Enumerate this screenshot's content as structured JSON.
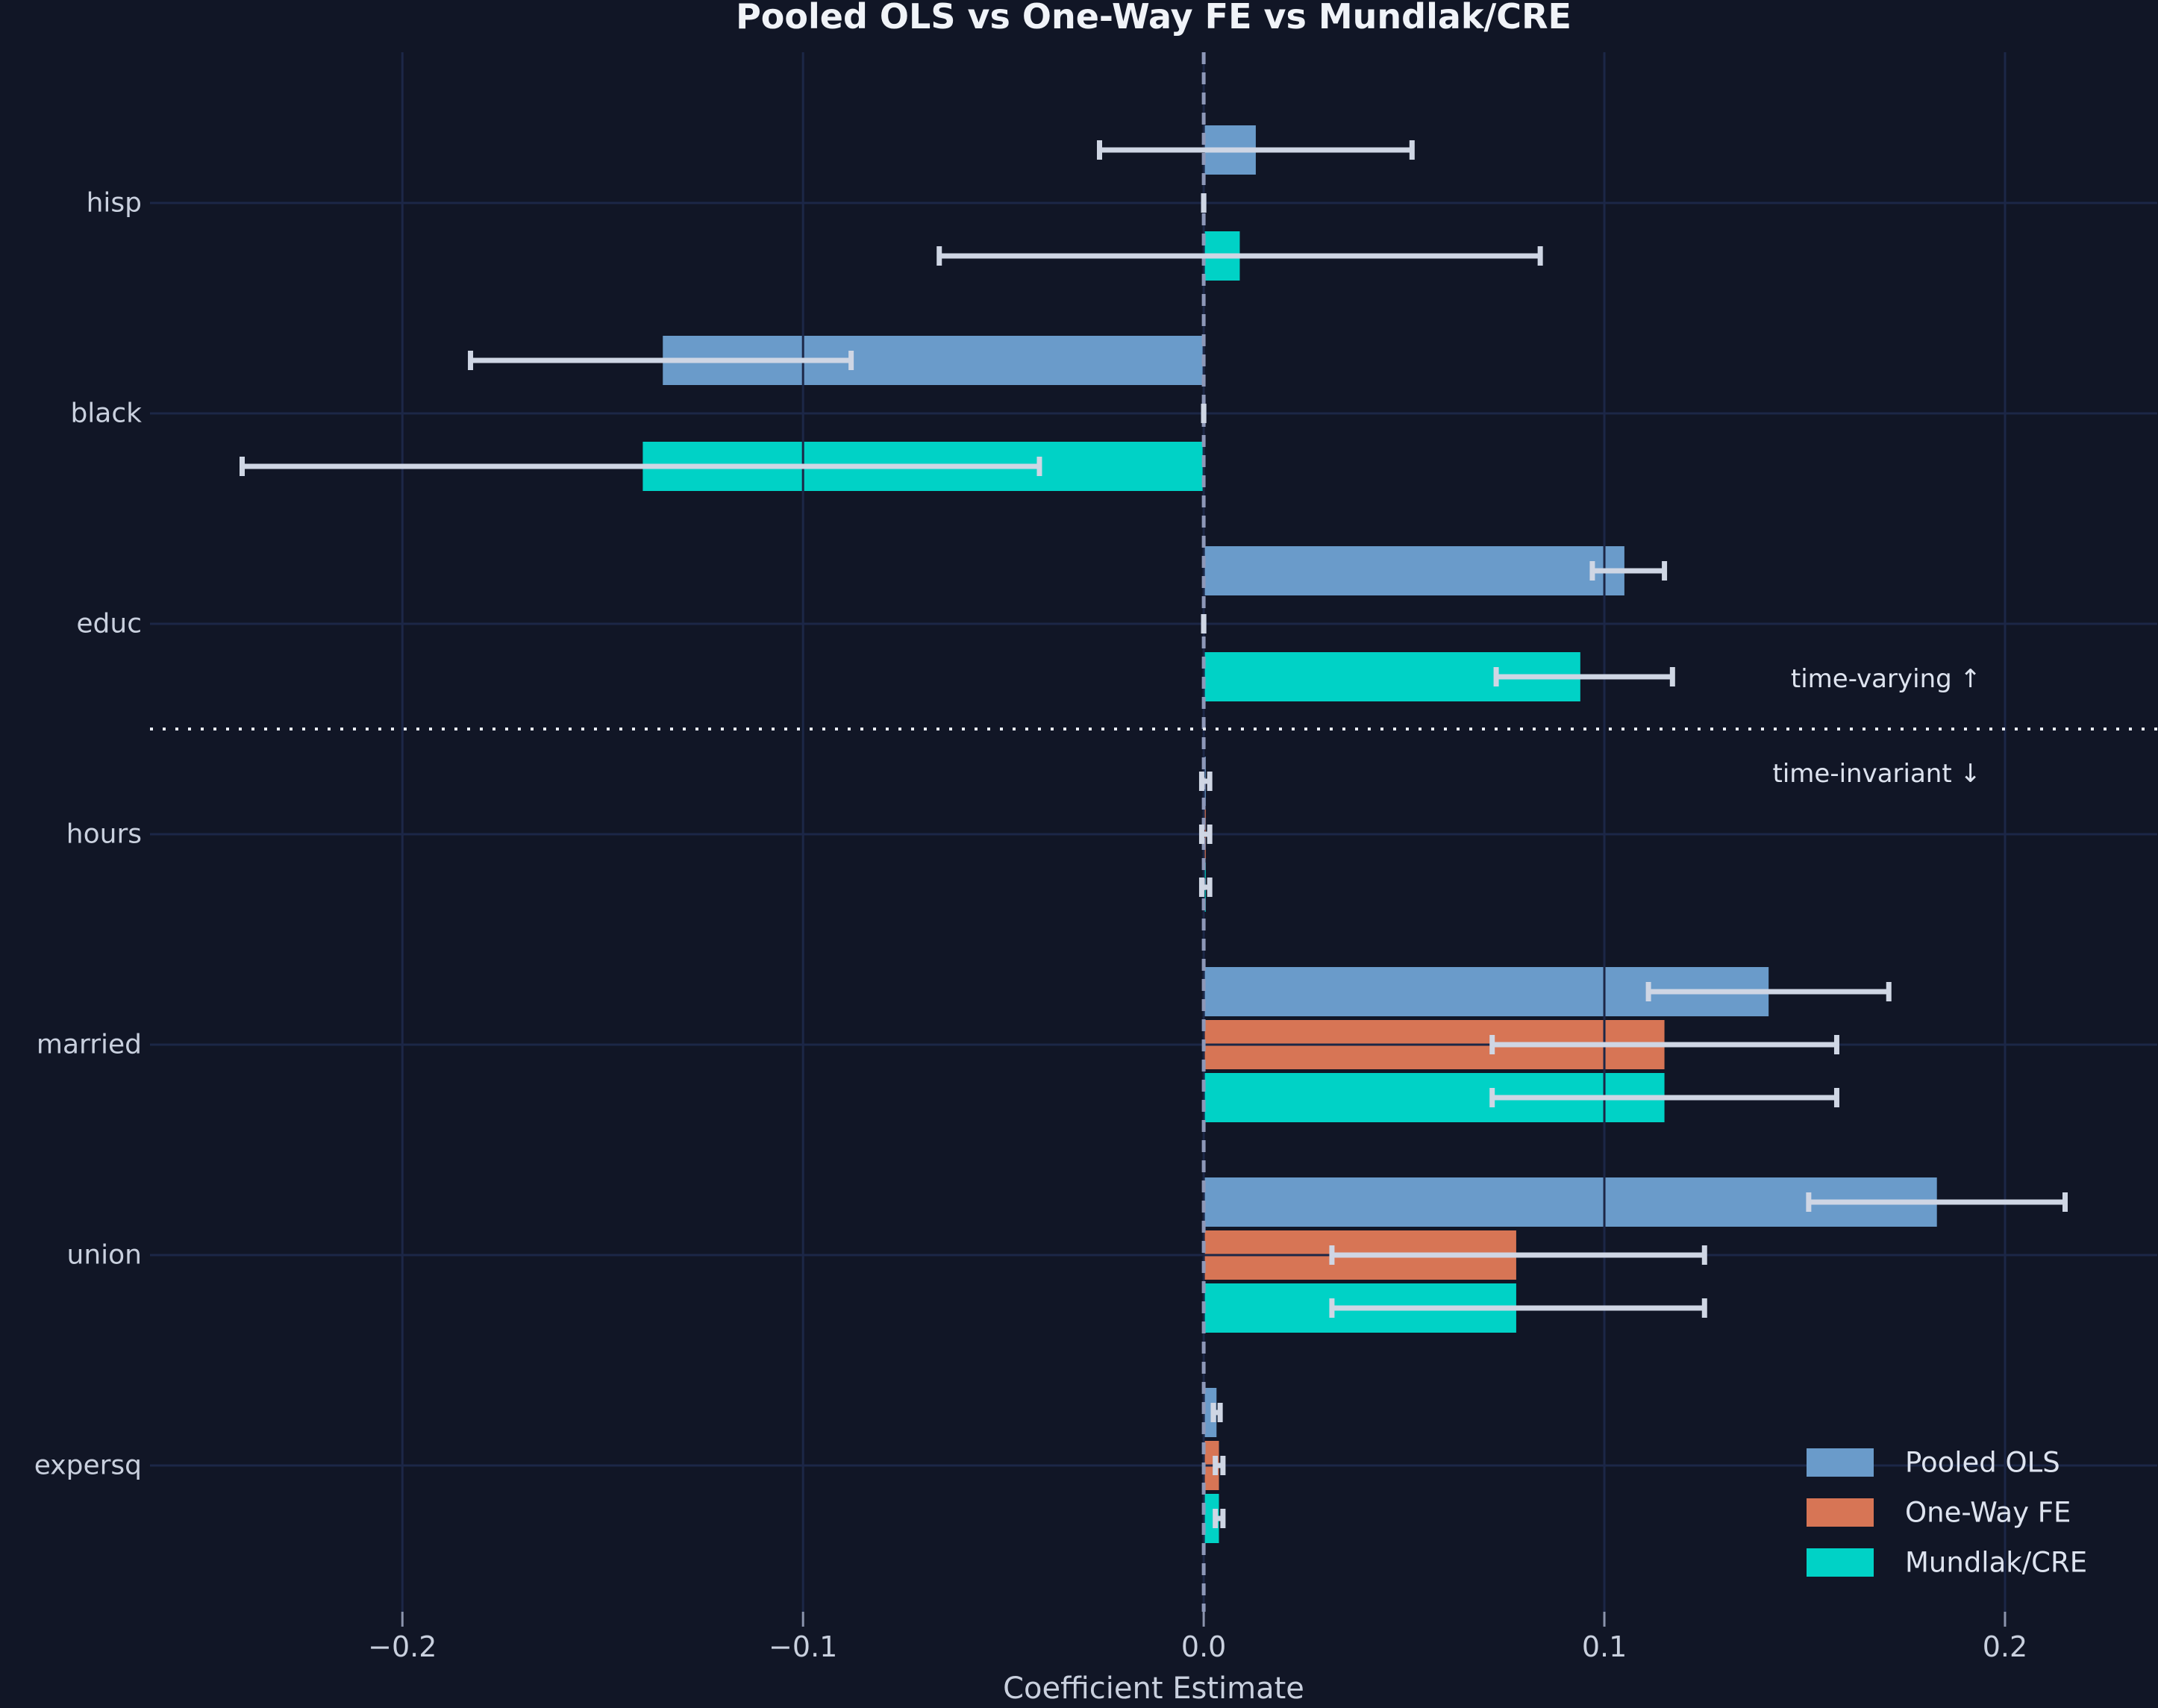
{
  "chart_data": {
    "type": "bar",
    "orientation": "horizontal",
    "title": "Pooled OLS vs One-Way FE vs Mundlak/CRE",
    "xlabel": "Coefficient Estimate",
    "categories": [
      "hisp",
      "black",
      "educ",
      "hours",
      "married",
      "union",
      "expersq"
    ],
    "xticks": [
      -0.2,
      -0.1,
      0.0,
      0.1,
      0.2
    ],
    "xtick_labels": [
      "−0.2",
      "−0.1",
      "0.0",
      "0.1",
      "0.2"
    ],
    "xlim": [
      -0.263,
      0.238
    ],
    "grid": true,
    "zero_line": "dashed",
    "legend_position": "lower right",
    "series": [
      {
        "name": "Pooled OLS",
        "color": "#6A9BCA",
        "estimates": [
          0.013,
          -0.135,
          0.105,
          0.0005,
          0.141,
          0.183,
          0.0032
        ],
        "ci_low": [
          -0.026,
          -0.183,
          0.097,
          -0.0005,
          0.111,
          0.151,
          0.0024
        ],
        "ci_high": [
          0.052,
          -0.088,
          0.115,
          0.0015,
          0.171,
          0.215,
          0.0041
        ]
      },
      {
        "name": "One-Way FE",
        "color": "#D77555",
        "estimates": [
          0.0,
          0.0,
          0.0,
          0.0005,
          0.115,
          0.078,
          0.0038
        ],
        "ci_low": [
          0.0,
          0.0,
          0.0,
          -0.0005,
          0.072,
          0.032,
          0.0029
        ],
        "ci_high": [
          0.0,
          0.0,
          0.0,
          0.0015,
          0.158,
          0.125,
          0.0048
        ]
      },
      {
        "name": "Mundlak/CRE",
        "color": "#00D2C6",
        "estimates": [
          0.009,
          -0.14,
          0.094,
          0.0005,
          0.115,
          0.078,
          0.0038
        ],
        "ci_low": [
          -0.066,
          -0.24,
          0.073,
          -0.0005,
          0.072,
          0.032,
          0.0029
        ],
        "ci_high": [
          0.084,
          -0.041,
          0.117,
          0.0015,
          0.158,
          0.125,
          0.0048
        ]
      }
    ],
    "divider": {
      "after_category": "educ",
      "above_label": "time-varying ↑",
      "below_label": "time-invariant ↓"
    }
  },
  "colors": {
    "background": "#111626",
    "grid": "#1C2747",
    "zero_line": "#8E98B8",
    "title_text": "#F0F3F8",
    "label_text": "#C9D0DE",
    "annotation_text": "#DDE3EF",
    "error_bar": "#CFD6E4",
    "divider_line": "#E8ECF4",
    "axis_tick": "#8B94AD"
  }
}
